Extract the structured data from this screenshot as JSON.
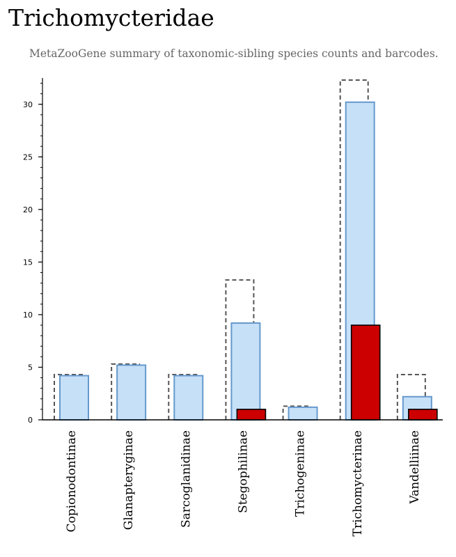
{
  "header": {
    "title": "Trichomycteridae",
    "subtitle": "MetaZooGene summary of taxonomic-sibling species counts and barcodes."
  },
  "colors": {
    "species_fill": "#c6e0f8",
    "species_stroke": "#6699cc",
    "barcode_fill": "#cc0000",
    "barcode_stroke": "#000000",
    "total_stroke": "#555555"
  },
  "chart_data": {
    "type": "bar",
    "title": "",
    "xlabel": "",
    "ylabel": "",
    "ylim": [
      0,
      32.5
    ],
    "yticks": [
      0,
      5,
      10,
      15,
      20,
      25,
      30
    ],
    "categories": [
      "Copionodontinae",
      "Glanapteryginae",
      "Sarcoglanidinae",
      "Stegophilinae",
      "Trichogeninae",
      "Trichomycterinae",
      "Vandelliinae"
    ],
    "series": [
      {
        "key": "total",
        "style": "dashed-outline",
        "values": [
          4.3,
          5.3,
          4.3,
          13.3,
          1.3,
          32.3,
          4.3
        ]
      },
      {
        "key": "species",
        "style": "light-blue",
        "values": [
          4.2,
          5.2,
          4.2,
          9.2,
          1.2,
          30.2,
          2.2
        ]
      },
      {
        "key": "barcodes",
        "style": "red",
        "values": [
          0,
          0,
          0,
          1,
          0,
          9,
          1
        ]
      }
    ],
    "grid": false,
    "legend": "none"
  }
}
